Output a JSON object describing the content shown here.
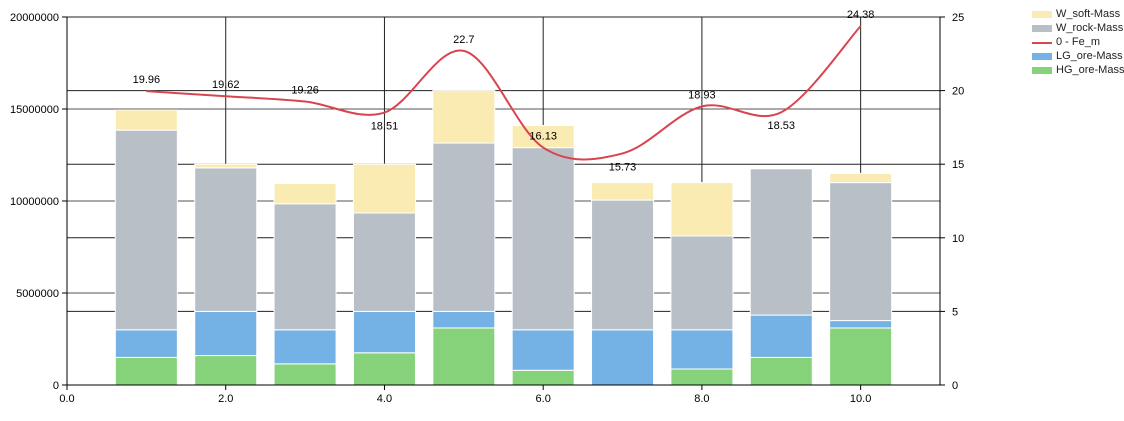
{
  "chart_data": {
    "type": "bar",
    "stacked": true,
    "x": [
      1,
      2,
      3,
      4,
      5,
      6,
      7,
      8,
      9,
      10
    ],
    "xlim": [
      0,
      11
    ],
    "x_ticks": [
      "0.0",
      "2.0",
      "4.0",
      "6.0",
      "8.0",
      "10.0"
    ],
    "ylim": [
      0,
      20000000
    ],
    "y_ticks": [
      "0",
      "5000000",
      "10000000",
      "15000000",
      "20000000"
    ],
    "y2lim": [
      0,
      25
    ],
    "y2_ticks": [
      "0",
      "5",
      "10",
      "15",
      "20",
      "25"
    ],
    "grid": true,
    "legend_position": "right",
    "series": [
      {
        "name": "HG_ore-Mass",
        "type": "bar",
        "color": "#86d27a",
        "values": [
          1500000,
          1600000,
          1150000,
          1750000,
          3100000,
          800000,
          0,
          870000,
          1500000,
          3100000
        ]
      },
      {
        "name": "LG_ore-Mass",
        "type": "bar",
        "color": "#74b1e4",
        "values": [
          1500000,
          2400000,
          1850000,
          2250000,
          900000,
          2200000,
          3000000,
          2130000,
          2300000,
          400000
        ]
      },
      {
        "name": "W_rock-Mass",
        "type": "bar",
        "color": "#b8bfc6",
        "values": [
          10850000,
          7800000,
          6850000,
          5350000,
          9150000,
          9900000,
          7050000,
          5100000,
          7950000,
          7500000
        ]
      },
      {
        "name": "W_soft-Mass",
        "type": "bar",
        "color": "#faebb2",
        "values": [
          1100000,
          200000,
          1100000,
          2650000,
          2850000,
          1200000,
          950000,
          2900000,
          0,
          500000
        ]
      },
      {
        "name": "0 - Fe_m",
        "type": "line",
        "axis": "right",
        "color": "#d9444f",
        "values": [
          19.96,
          19.62,
          19.26,
          18.51,
          22.7,
          16.13,
          15.73,
          18.93,
          18.53,
          24.38
        ],
        "labels": [
          "19.96",
          "19.62",
          "19.26",
          "18.51",
          "22.7",
          "16.13",
          "15.73",
          "18.93",
          "18.53",
          "24.38"
        ]
      }
    ],
    "legend_order": [
      "W_soft-Mass",
      "W_rock-Mass",
      "0 - Fe_m",
      "LG_ore-Mass",
      "HG_ore-Mass"
    ]
  }
}
